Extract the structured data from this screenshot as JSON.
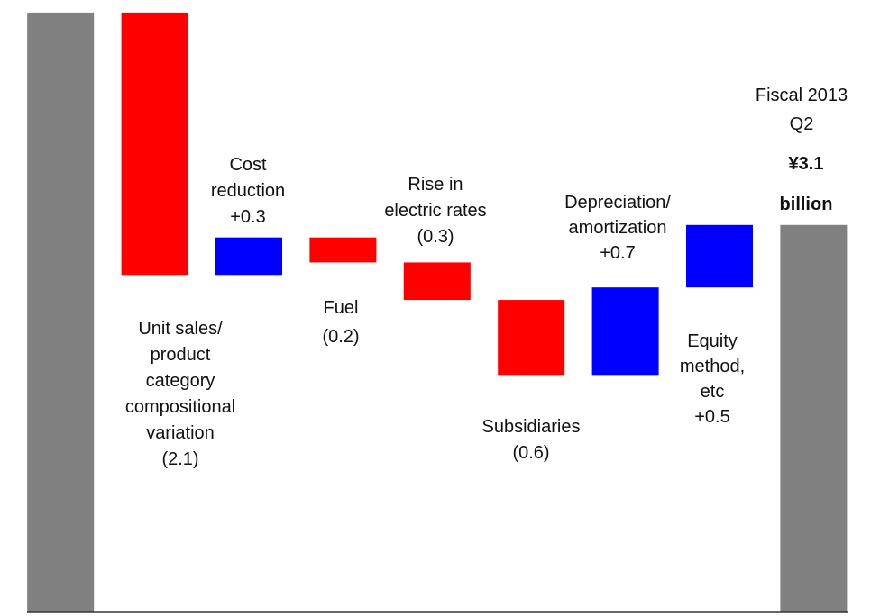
{
  "chart_data": {
    "type": "waterfall",
    "categories": [
      null,
      "Unit sales/\nproduct\ncategory\ncompositional\nvariation",
      "Cost\nreduction",
      "Fuel",
      "Rise in\nelectric rates",
      "Subsidiaries",
      "Depreciation/\namortization",
      "Equity\nmethod,\netc",
      "Fiscal 2013\nQ2"
    ],
    "measure": [
      "absolute",
      "relative",
      "relative",
      "relative",
      "relative",
      "relative",
      "relative",
      "relative",
      "absolute"
    ],
    "values": [
      4.8,
      -2.1,
      0.3,
      -0.2,
      -0.3,
      -0.6,
      0.7,
      0.5,
      3.1
    ],
    "value_labels": [
      null,
      "(2.1)",
      "+0.3",
      "(0.2)",
      "(0.3)",
      "(0.6)",
      "+0.7",
      "+0.5",
      "¥3.1\nbillion"
    ],
    "colors": {
      "total": "#808080",
      "increase": "#0000ff",
      "decrease": "#ff0000"
    },
    "ylim": [
      0,
      4.9
    ]
  }
}
